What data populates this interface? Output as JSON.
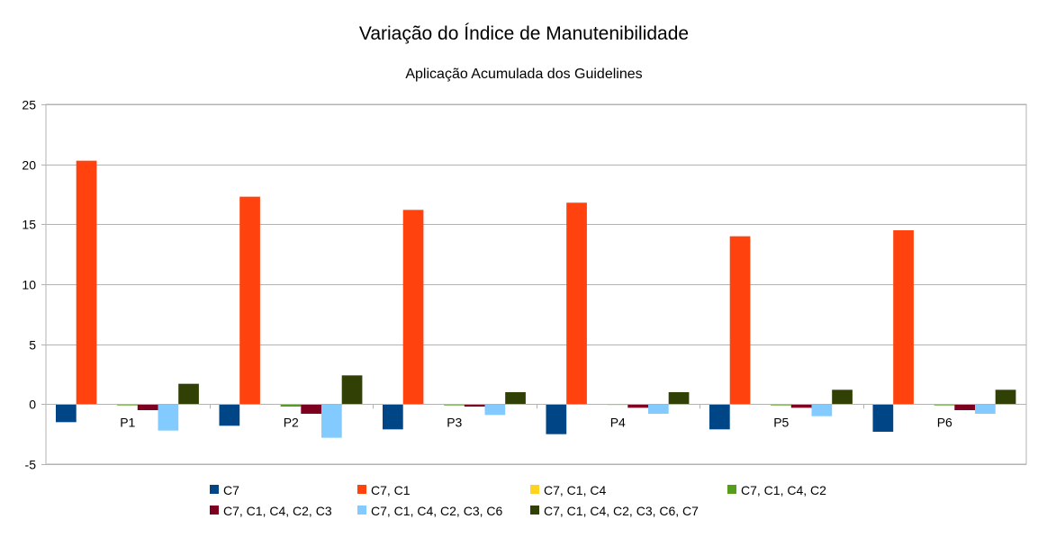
{
  "chart_data": {
    "type": "bar",
    "title": "Variação do Índice de Manutenibilidade",
    "subtitle": "Aplicação Acumulada dos Guidelines",
    "xlabel": "",
    "ylabel": "",
    "ylim": [
      -5,
      25
    ],
    "yticks": [
      -5,
      0,
      5,
      10,
      15,
      20,
      25
    ],
    "grid": true,
    "legend_position": "bottom",
    "categories": [
      "P1",
      "P2",
      "P3",
      "P4",
      "P5",
      "P6"
    ],
    "series": [
      {
        "name": "C7",
        "color": "#004586",
        "values": [
          -1.5,
          -1.8,
          -2.1,
          -2.5,
          -2.1,
          -2.3
        ]
      },
      {
        "name": "C7, C1",
        "color": "#ff420e",
        "values": [
          20.3,
          17.3,
          16.2,
          16.8,
          14.0,
          14.5
        ]
      },
      {
        "name": "C7, C1, C4",
        "color": "#ffd320",
        "values": [
          0,
          0,
          0,
          0,
          0,
          0
        ]
      },
      {
        "name": "C7, C1, C4, C2",
        "color": "#579d1c",
        "values": [
          -0.1,
          -0.2,
          -0.1,
          -0.05,
          -0.1,
          -0.1
        ]
      },
      {
        "name": "C7, C1, C4, C2, C3",
        "color": "#7e0021",
        "values": [
          -0.5,
          -0.8,
          -0.2,
          -0.3,
          -0.3,
          -0.5
        ]
      },
      {
        "name": "C7, C1, C4, C2, C3, C6",
        "color": "#83caff",
        "values": [
          -2.2,
          -2.8,
          -0.9,
          -0.8,
          -1.0,
          -0.8
        ]
      },
      {
        "name": "C7, C1, C4, C2, C3, C6, C7",
        "color": "#314004",
        "values": [
          1.7,
          2.4,
          1.0,
          1.0,
          1.2,
          1.2
        ]
      }
    ]
  }
}
